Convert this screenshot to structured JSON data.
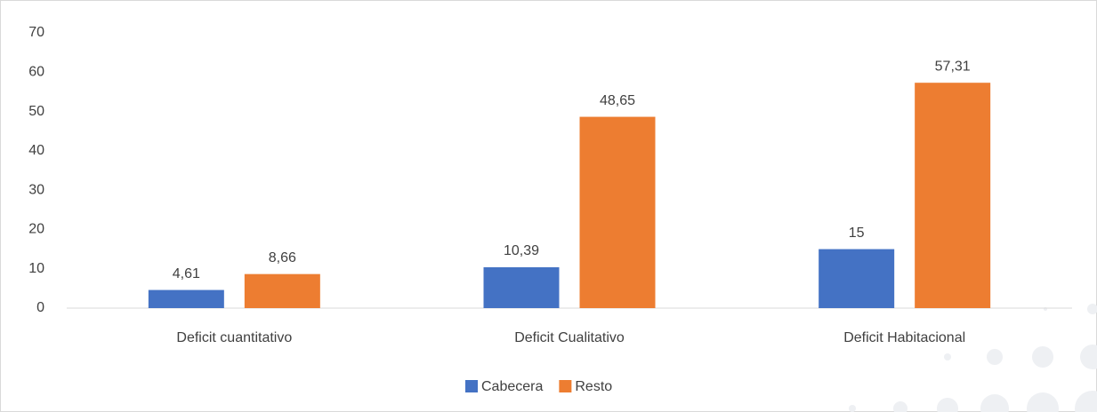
{
  "chart_data": {
    "type": "bar",
    "categories": [
      "Deficit cuantitativo",
      "Deficit Cualitativo",
      "Deficit Habitacional"
    ],
    "series": [
      {
        "name": "Cabecera",
        "color": "#4472c4",
        "values": [
          4.61,
          10.39,
          15
        ],
        "value_labels": [
          "4,61",
          "10,39",
          "15"
        ]
      },
      {
        "name": "Resto",
        "color": "#ed7d31",
        "values": [
          8.66,
          48.65,
          57.31
        ],
        "value_labels": [
          "8,66",
          "48,65",
          "57,31"
        ]
      }
    ],
    "ylim": [
      0,
      70
    ],
    "yticks": [
      0,
      10,
      20,
      30,
      40,
      50,
      60,
      70
    ],
    "grid": false,
    "legend": "bottom"
  }
}
